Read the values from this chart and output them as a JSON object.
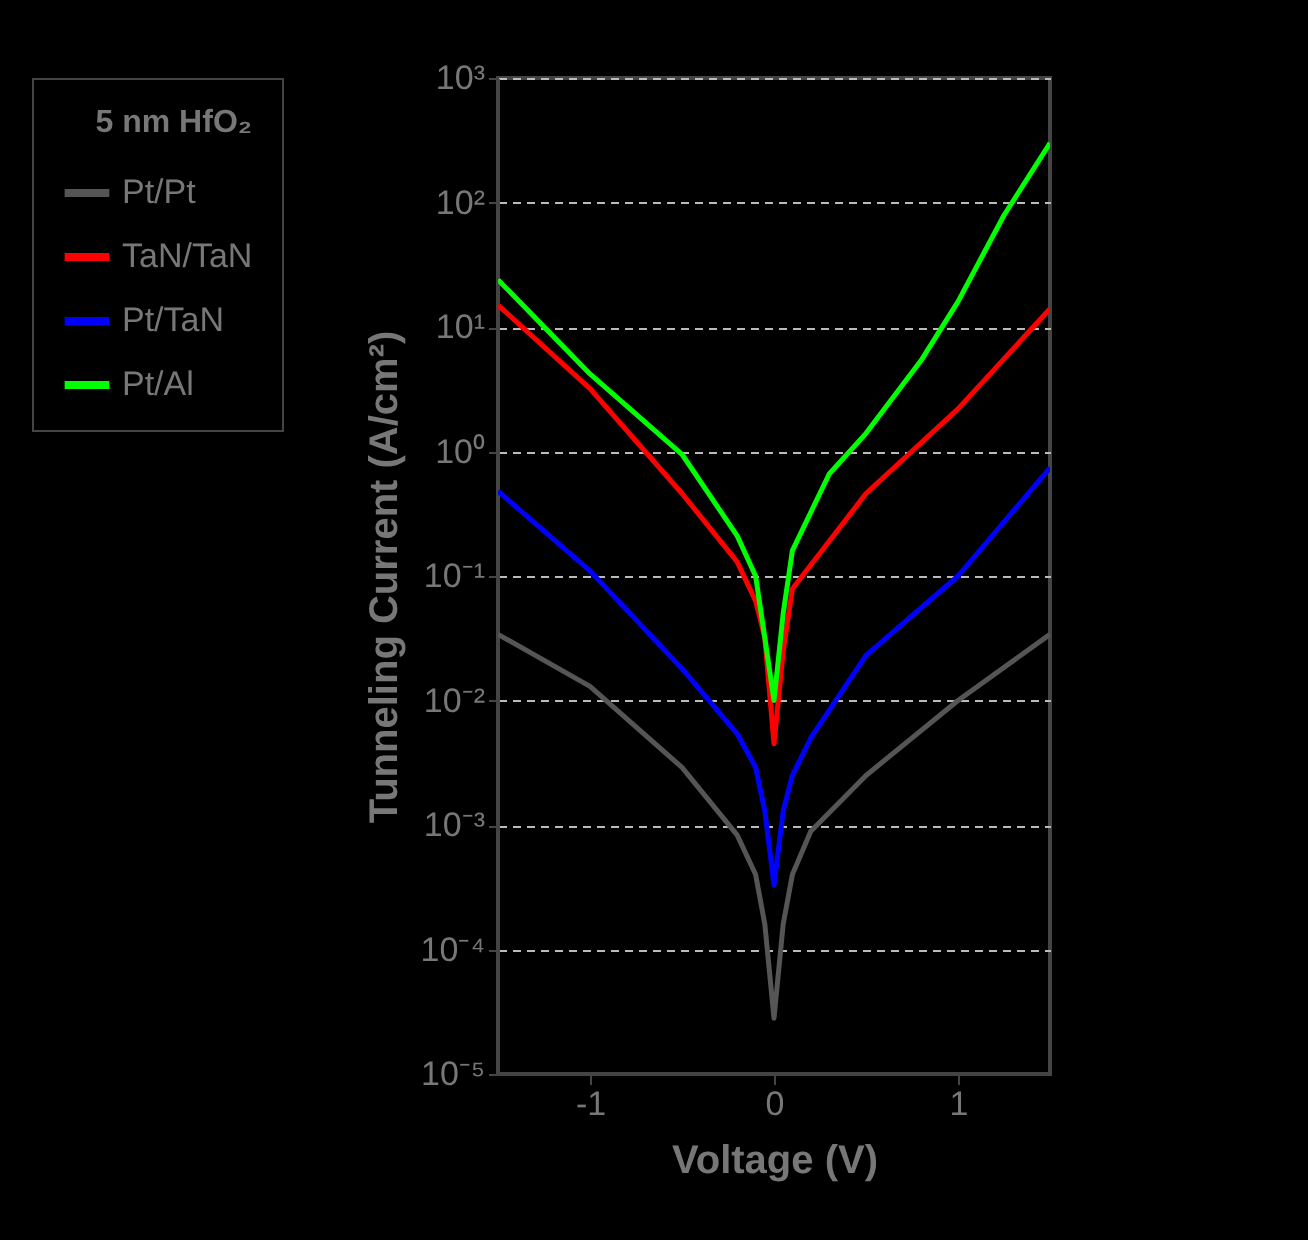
{
  "chart_data": {
    "type": "line",
    "xlabel": "Voltage (V)",
    "ylabel": "Tunneling Current (A/cm²)",
    "legend_title": "5 nm HfO₂",
    "legend": "left",
    "log": "y",
    "grid": "y",
    "line_style": "solid",
    "xlim": [
      -1.5,
      1.5
    ],
    "xticks": [
      -1,
      0,
      1
    ],
    "ylim": [
      1e-05,
      1000
    ],
    "yticks": [
      {
        "value": 1e-05,
        "label": "10⁻⁵"
      },
      {
        "value": 0.0001,
        "label": "10⁻⁴"
      },
      {
        "value": 0.001,
        "label": "10⁻³"
      },
      {
        "value": 0.01,
        "label": "10⁻²"
      },
      {
        "value": 0.1,
        "label": "10⁻¹"
      },
      {
        "value": 1,
        "label": "10⁰"
      },
      {
        "value": 10,
        "label": "10¹"
      },
      {
        "value": 100,
        "label": "10²"
      },
      {
        "value": 1000,
        "label": "10³"
      }
    ],
    "series": [
      {
        "name": "Pt/Pt",
        "color": "#555555",
        "x": [
          -1.5,
          -1,
          -0.5,
          -0.2,
          -0.1,
          -0.05,
          0,
          0.05,
          0.1,
          0.2,
          0.5,
          1,
          1.5
        ],
        "values": [
          0.034,
          0.013,
          0.0029,
          0.00083,
          0.0004,
          0.00016,
          2.8e-05,
          0.00016,
          0.0004,
          0.00089,
          0.0025,
          0.01,
          0.034
        ]
      },
      {
        "name": "TaN/TaN",
        "color": "#ff0000",
        "x": [
          -1.5,
          -1,
          -0.5,
          -0.2,
          -0.1,
          -0.05,
          0,
          0.05,
          0.1,
          0.3,
          0.5,
          1,
          1.5
        ],
        "values": [
          15,
          3.2,
          0.46,
          0.13,
          0.063,
          0.032,
          0.0045,
          0.025,
          0.079,
          0.19,
          0.46,
          2.2,
          14
        ]
      },
      {
        "name": "Pt/TaN",
        "color": "#0000ff",
        "x": [
          -1.5,
          -1,
          -0.5,
          -0.2,
          -0.1,
          -0.05,
          0,
          0.05,
          0.1,
          0.2,
          0.5,
          1,
          1.5
        ],
        "values": [
          0.48,
          0.11,
          0.018,
          0.0054,
          0.0029,
          0.0013,
          0.00033,
          0.0013,
          0.0025,
          0.005,
          0.023,
          0.1,
          0.74
        ]
      },
      {
        "name": "Pt/Al",
        "color": "#00ff00",
        "x": [
          -1.5,
          -1,
          -0.5,
          -0.2,
          -0.1,
          -0.05,
          0,
          0.05,
          0.1,
          0.3,
          0.5,
          0.8,
          1,
          1.25,
          1.5
        ],
        "values": [
          24,
          4.2,
          0.95,
          0.21,
          0.1,
          0.032,
          0.01,
          0.05,
          0.16,
          0.66,
          1.4,
          5.4,
          16,
          79,
          300
        ]
      }
    ]
  }
}
